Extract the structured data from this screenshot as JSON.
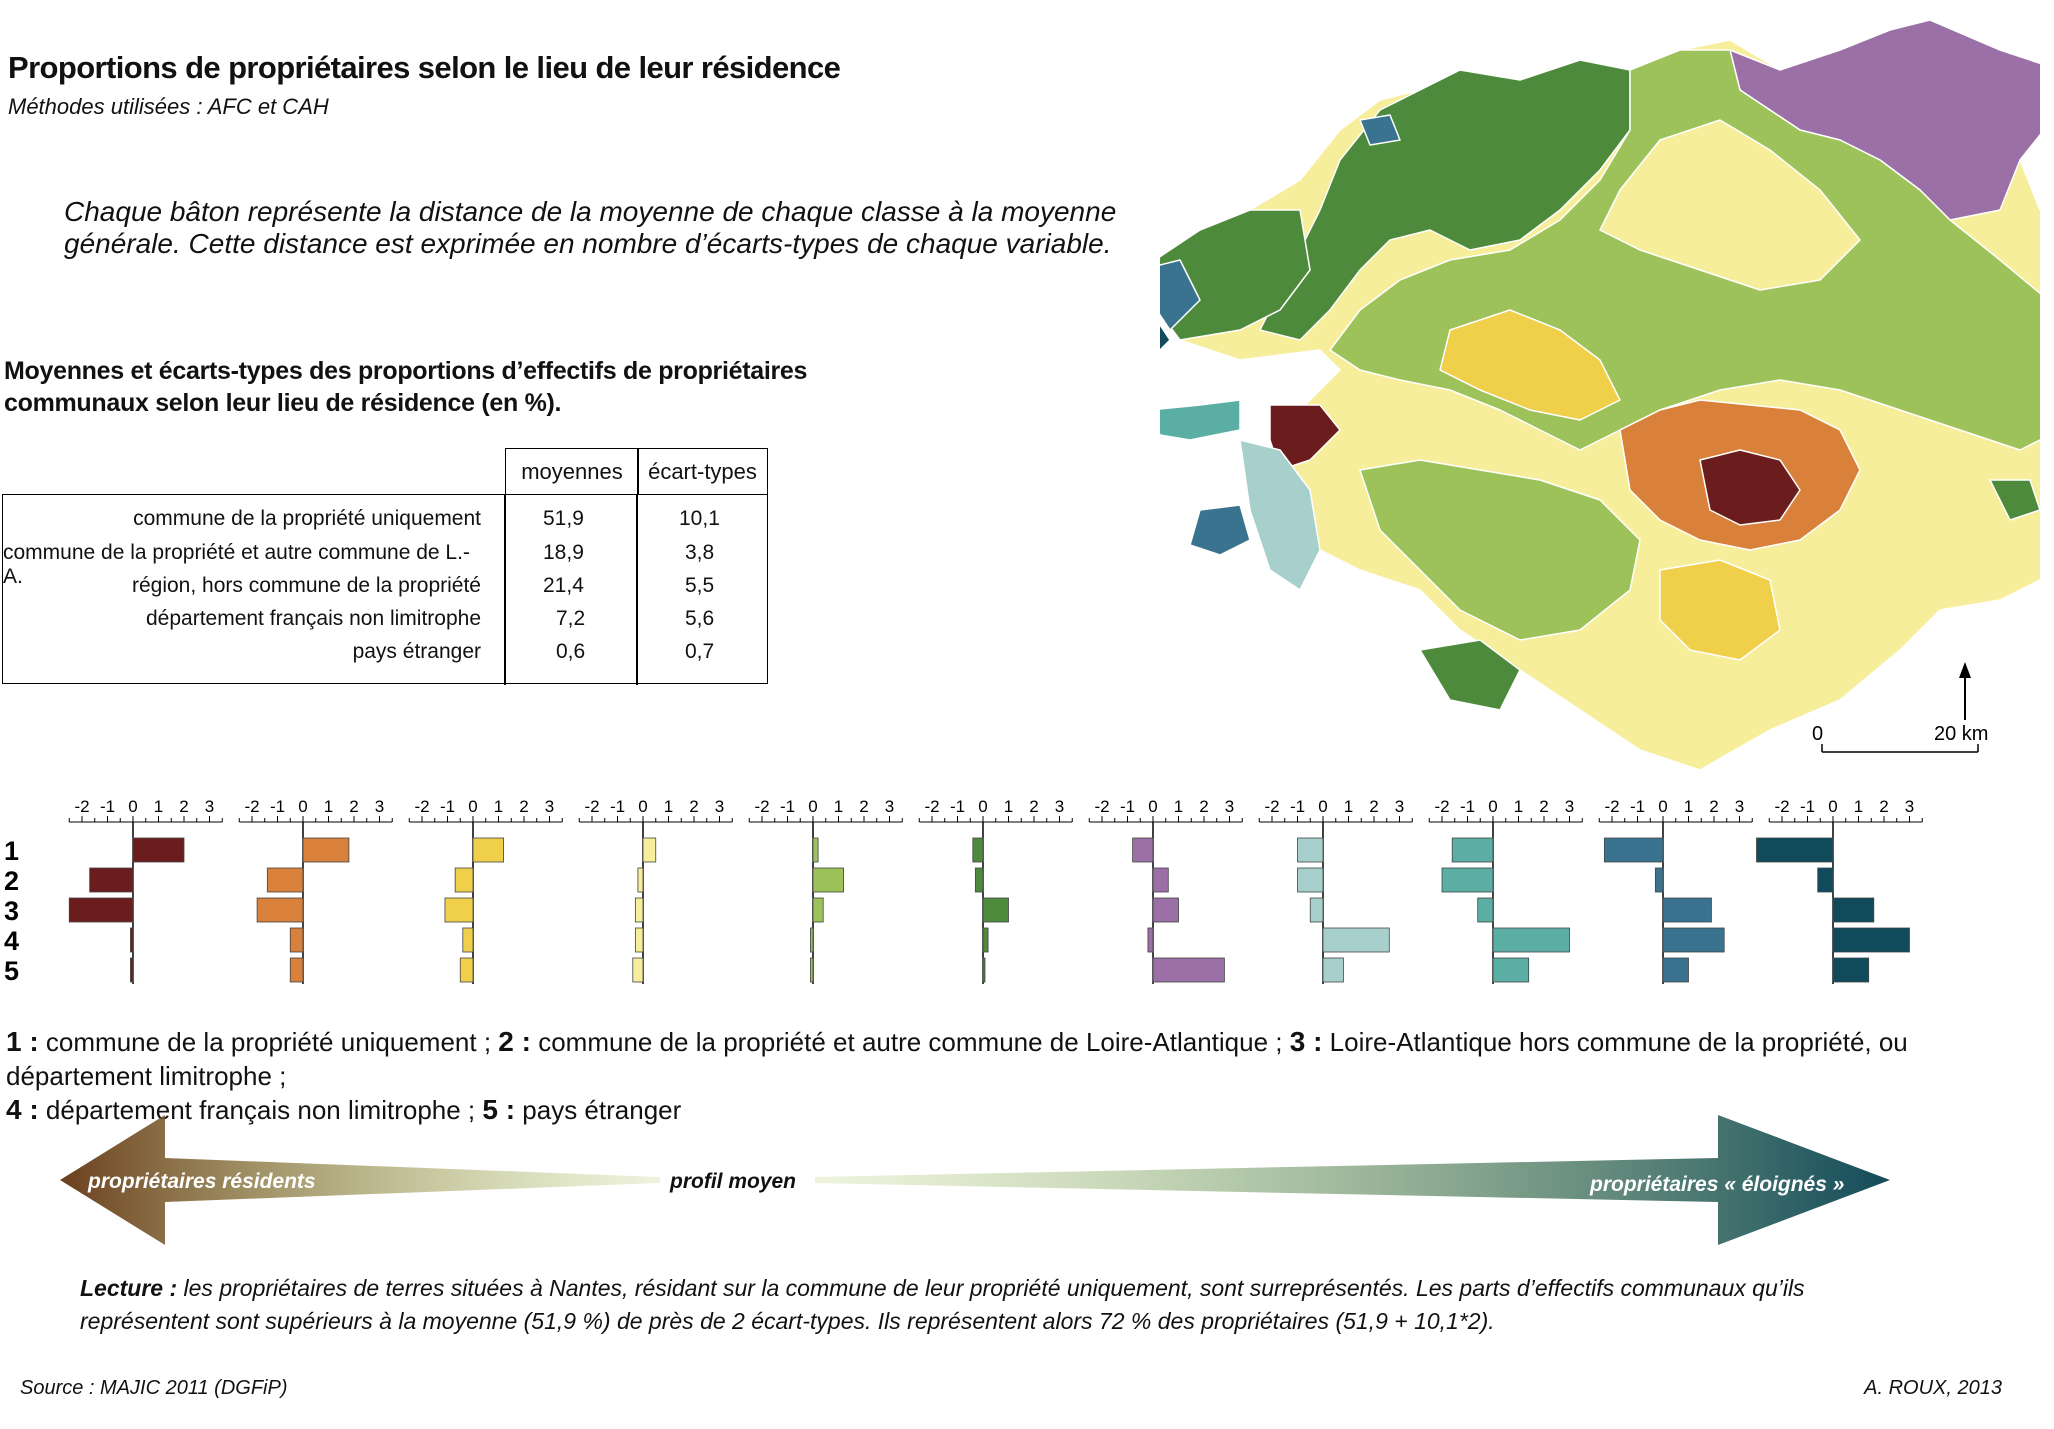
{
  "title": "Proportions de propriétaires selon le lieu de leur résidence",
  "subtitle": "Méthodes utilisées : AFC et CAH",
  "description_line1": "Chaque bâton représente la distance de la moyenne de chaque classe à la moyenne",
  "description_line2": "générale. Cette distance est exprimée en nombre d’écarts-types de chaque variable.",
  "table": {
    "title_line1": "Moyennes et écarts-types des proportions d’effectifs de propriétaires",
    "title_line2": "communaux selon leur lieu de résidence (en %).",
    "headers": [
      "moyennes",
      "écart-types"
    ],
    "rows": [
      {
        "label": "commune de la propriété uniquement",
        "mean": "51,9",
        "sd": "10,1"
      },
      {
        "label": "commune de la propriété et autre commune de L.-A.",
        "mean": "18,9",
        "sd": "3,8"
      },
      {
        "label": "région, hors commune de la propriété",
        "mean": "21,4",
        "sd": "5,5"
      },
      {
        "label": "département français non limitrophe",
        "mean": "7,2",
        "sd": "5,6"
      },
      {
        "label": "pays étranger",
        "mean": "0,6",
        "sd": "0,7"
      }
    ]
  },
  "chart_data": {
    "type": "bar",
    "orientation": "horizontal",
    "axis_ticks": [
      "-2",
      "-1",
      "0",
      "1",
      "2",
      "3"
    ],
    "xlim": [
      -2.5,
      3.5
    ],
    "row_labels": [
      "1",
      "2",
      "3",
      "4",
      "5"
    ],
    "classes": [
      {
        "color": "#6b1d1d",
        "values": [
          2.0,
          -1.7,
          -2.5,
          -0.1,
          -0.1
        ]
      },
      {
        "color": "#d9813a",
        "values": [
          1.8,
          -1.4,
          -1.8,
          -0.5,
          -0.5
        ]
      },
      {
        "color": "#f0cf4a",
        "values": [
          1.2,
          -0.7,
          -1.1,
          -0.4,
          -0.5
        ]
      },
      {
        "color": "#f6ee9a",
        "values": [
          0.5,
          -0.2,
          -0.3,
          -0.3,
          -0.4
        ]
      },
      {
        "color": "#9dc25a",
        "values": [
          0.2,
          1.2,
          0.4,
          -0.1,
          -0.1
        ]
      },
      {
        "color": "#4e8a3c",
        "values": [
          -0.4,
          -0.3,
          1.0,
          0.2,
          0.0
        ]
      },
      {
        "color": "#9a70a6",
        "values": [
          -0.8,
          0.6,
          1.0,
          -0.2,
          2.8
        ]
      },
      {
        "color": "#a7cfcb",
        "values": [
          -1.0,
          -1.0,
          -0.5,
          2.6,
          0.8
        ]
      },
      {
        "color": "#5aaea4",
        "values": [
          -1.6,
          -2.0,
          -0.6,
          3.0,
          1.4
        ]
      },
      {
        "color": "#3a7390",
        "values": [
          -2.3,
          -0.3,
          1.9,
          2.4,
          1.0
        ]
      },
      {
        "color": "#0f4b5a",
        "values": [
          -3.0,
          -0.6,
          1.6,
          3.0,
          1.4
        ]
      }
    ]
  },
  "legend": {
    "n1": "1 :",
    "t1": " commune de la propriété uniquement ;",
    "n2": "2 :",
    "t2": " commune de la propriété et autre commune de Loire-Atlantique ;",
    "n3": "3 :",
    "t3": " Loire-Atlantique hors commune de la propriété, ou département limitrophe ;",
    "n4": "4 :",
    "t4": " département français non limitrophe ;",
    "n5": "5 :",
    "t5": " pays étranger"
  },
  "gradient": {
    "left_label": "propriétaires résidents",
    "center_label": "profil moyen",
    "right_label": "propriétaires « éloignés »",
    "left_color": "#6b3f1d",
    "mid_color": "#a9c45a",
    "right_color": "#124b5a"
  },
  "scale": {
    "zero": "0",
    "distance": "20 km"
  },
  "lecture": {
    "label": "Lecture :",
    "text1": " les propriétaires de terres situées à Nantes, résidant sur la commune de leur propriété uniquement, sont surreprésentés. Les parts d’effectifs communaux qu’ils",
    "text2": "représentent sont supérieurs à la moyenne (51,9 %) de près de 2 écart-types. Ils représentent alors 72 % des propriétaires (51,9 + 10,1*2)."
  },
  "source": "Source : MAJIC 2011 (DGFiP)",
  "author": "A. ROUX, 2013"
}
